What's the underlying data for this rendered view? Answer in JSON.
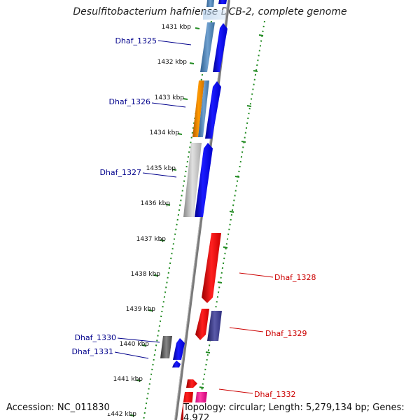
{
  "title": "Desulfitobacterium hafniense DCB-2, complete genome",
  "accession": "Accession: NC_011830",
  "topology": "Topology: circular; Length: 5,279,134 bp; Genes: 4,972",
  "colors": {
    "forward_label": "#00008b",
    "reverse_label": "#cc0000",
    "backbone": "#888888",
    "tick_green": "#228b22"
  },
  "kbp_labels": [
    "1431 kbp",
    "1432 kbp",
    "1433 kbp",
    "1434 kbp",
    "1435 kbp",
    "1436 kbp",
    "1437 kbp",
    "1438 kbp",
    "1439 kbp",
    "1440 kbp",
    "1441 kbp",
    "1442 kbp"
  ],
  "gene_labels": [
    {
      "name": "Dhaf_1325",
      "strand": "forward"
    },
    {
      "name": "Dhaf_1326",
      "strand": "forward"
    },
    {
      "name": "Dhaf_1327",
      "strand": "forward"
    },
    {
      "name": "Dhaf_1328",
      "strand": "reverse"
    },
    {
      "name": "Dhaf_1329",
      "strand": "reverse"
    },
    {
      "name": "Dhaf_1330",
      "strand": "forward"
    },
    {
      "name": "Dhaf_1331",
      "strand": "forward"
    },
    {
      "name": "Dhaf_1332",
      "strand": "reverse"
    }
  ]
}
